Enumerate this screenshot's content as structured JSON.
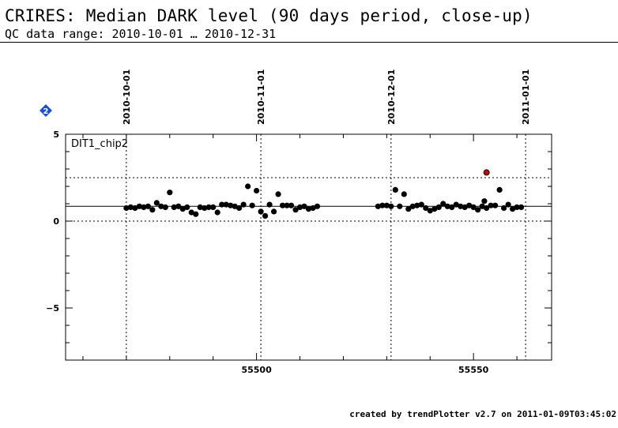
{
  "header": {
    "title": "CRIRES: Median DARK level (90 days period, close-up)",
    "subtitle": "QC data range: 2010-10-01 … 2010-12-31"
  },
  "footer": {
    "credit": "created by trendPlotter v2.7 on 2011-01-09T03:45:02"
  },
  "badge": {
    "label": "2",
    "color": "#1a4fd6"
  },
  "chart_data": {
    "type": "scatter",
    "panel_label": "DIT1_chip2",
    "xlim": [
      55456,
      55568
    ],
    "ylim": [
      -8,
      5
    ],
    "x_ticks": [
      55500,
      55550
    ],
    "y_ticks": [
      5,
      0,
      -5
    ],
    "date_markers": [
      {
        "label": "2010-10-01",
        "x": 55470
      },
      {
        "label": "2010-11-01",
        "x": 55501
      },
      {
        "label": "2010-12-01",
        "x": 55531
      },
      {
        "label": "2011-01-01",
        "x": 55562
      }
    ],
    "reference_line": 0.85,
    "threshold_lines": [
      2.5,
      0.0
    ],
    "grid": "dotted vertical at month starts",
    "colors": {
      "points": "#000000",
      "outlier": "#b01010",
      "lines": "#000000"
    },
    "series": [
      {
        "x": [
          55470,
          55471,
          55472,
          55473,
          55474,
          55475,
          55476,
          55477,
          55478,
          55479,
          55480,
          55481,
          55482,
          55483,
          55484,
          55485,
          55486,
          55487,
          55488,
          55489,
          55490,
          55491,
          55492,
          55493,
          55494,
          55495,
          55496,
          55497,
          55498,
          55499,
          55500,
          55501,
          55502,
          55503,
          55504,
          55505,
          55506,
          55507,
          55508,
          55509,
          55510,
          55511,
          55512,
          55513,
          55514,
          55528,
          55529,
          55530,
          55531,
          55532,
          55533,
          55534,
          55535,
          55536,
          55537,
          55538,
          55539,
          55540,
          55541,
          55542,
          55543,
          55544,
          55545,
          55546,
          55547,
          55548,
          55549,
          55550,
          55551,
          55552,
          55552.5,
          55553,
          55554,
          55555,
          55556,
          55557,
          55558,
          55559,
          55560,
          55561
        ],
        "y": [
          0.75,
          0.8,
          0.75,
          0.85,
          0.8,
          0.85,
          0.65,
          1.05,
          0.85,
          0.8,
          1.65,
          0.8,
          0.85,
          0.7,
          0.8,
          0.5,
          0.4,
          0.8,
          0.75,
          0.8,
          0.8,
          0.5,
          0.95,
          0.95,
          0.9,
          0.85,
          0.75,
          0.95,
          2.0,
          0.9,
          1.75,
          0.55,
          0.3,
          0.95,
          0.55,
          1.55,
          0.9,
          0.9,
          0.9,
          0.65,
          0.8,
          0.85,
          0.7,
          0.75,
          0.85,
          0.85,
          0.9,
          0.9,
          0.85,
          1.8,
          0.85,
          1.55,
          0.7,
          0.85,
          0.9,
          0.95,
          0.75,
          0.6,
          0.7,
          0.8,
          1.0,
          0.85,
          0.8,
          0.95,
          0.85,
          0.8,
          0.9,
          0.8,
          0.65,
          0.85,
          1.15,
          0.75,
          0.9,
          0.9,
          1.8,
          0.75,
          0.95,
          0.7,
          0.8,
          0.8
        ]
      }
    ],
    "outliers": [
      {
        "x": 55553,
        "y": 2.8
      }
    ]
  }
}
